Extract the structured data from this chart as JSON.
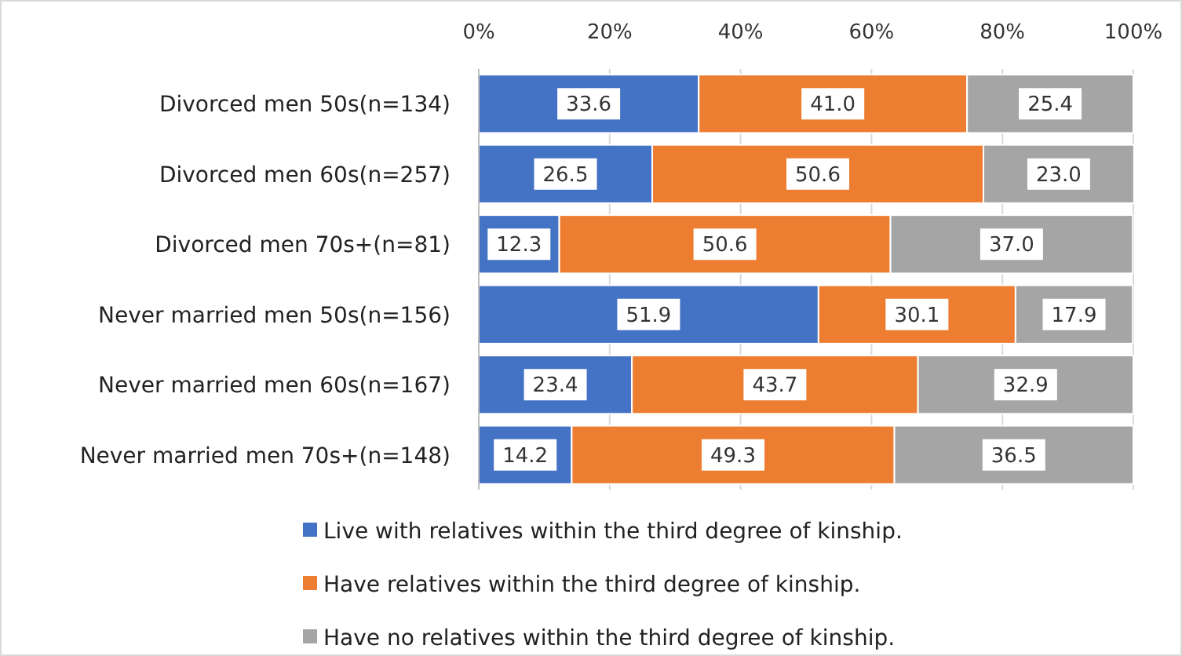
{
  "chart_data": {
    "type": "bar",
    "orientation": "horizontal",
    "stacked": true,
    "grid": "x",
    "legend": "bottom",
    "categories": [
      "Divorced men 50s(n=134)",
      "Divorced men 60s(n=257)",
      "Divorced men 70s+(n=81)",
      "Never married men 50s(n=156)",
      "Never married men 60s(n=167)",
      "Never married men 70s+(n=148)"
    ],
    "series": [
      {
        "name": "Live with relatives within the third degree of kinship.",
        "color": "#4472c4",
        "values": [
          33.6,
          26.5,
          12.3,
          51.9,
          23.4,
          14.2
        ],
        "value_labels": [
          "33.6",
          "26.5",
          "12.3",
          "51.9",
          "23.4",
          "14.2"
        ]
      },
      {
        "name": "Have relatives within the third degree of kinship.",
        "color": "#ed7d31",
        "values": [
          41.0,
          50.6,
          50.6,
          30.1,
          43.7,
          49.3
        ],
        "value_labels": [
          "41.0",
          "50.6",
          "50.6",
          "30.1",
          "43.7",
          "49.3"
        ]
      },
      {
        "name": "Have no relatives within the third degree of kinship.",
        "color": "#a5a5a5",
        "values": [
          25.4,
          23.0,
          37.0,
          17.9,
          32.9,
          36.5
        ],
        "value_labels": [
          "25.4",
          "23.0",
          "37.0",
          "17.9",
          "32.9",
          "36.5"
        ]
      }
    ],
    "xlim": [
      0,
      100
    ],
    "xticks": [
      {
        "value": 0,
        "label": "0%"
      },
      {
        "value": 20,
        "label": "20%"
      },
      {
        "value": 40,
        "label": "40%"
      },
      {
        "value": 60,
        "label": "60%"
      },
      {
        "value": 80,
        "label": "80%"
      },
      {
        "value": 100,
        "label": "100%"
      }
    ]
  }
}
